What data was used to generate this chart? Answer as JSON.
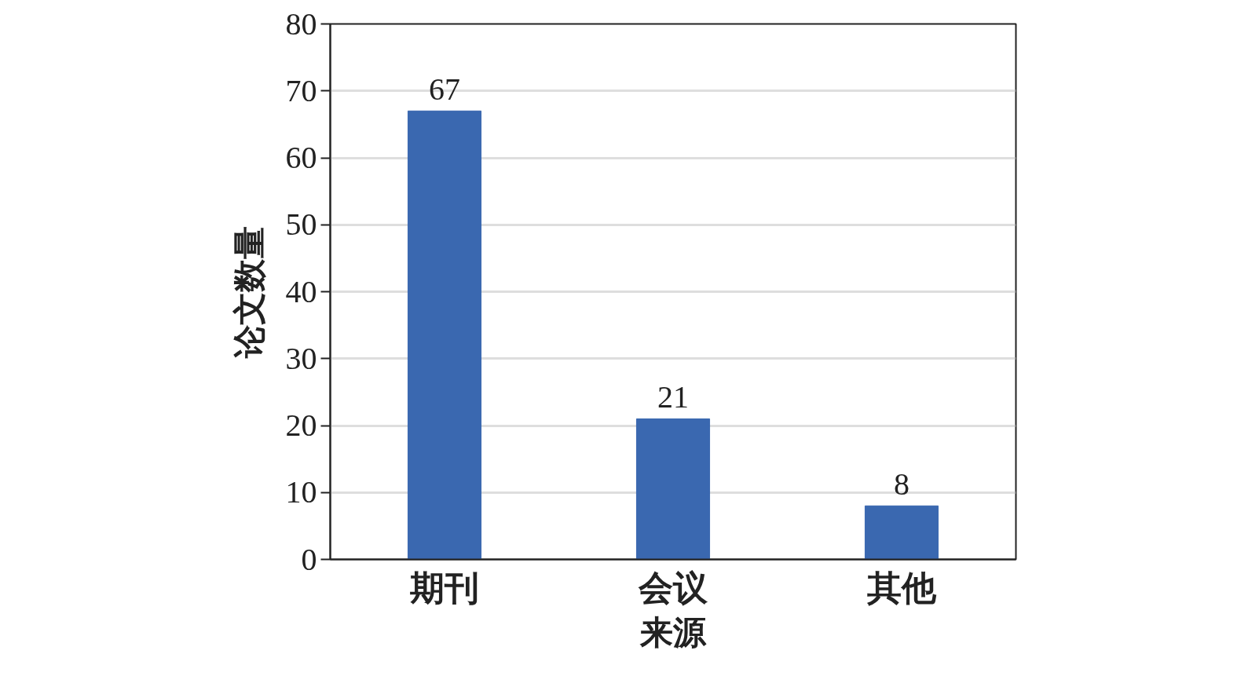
{
  "chart_data": {
    "type": "bar",
    "xlabel": "来源",
    "ylabel": "论文数量",
    "categories": [
      "期刊",
      "会议",
      "其他"
    ],
    "series": [
      {
        "color": "#3a68b0",
        "values": [
          67,
          21,
          8
        ]
      }
    ],
    "ylim": [
      0,
      80
    ],
    "yticks": [
      0,
      10,
      20,
      30,
      40,
      50,
      60,
      70,
      80
    ],
    "grid": "y",
    "data_labels": true
  }
}
